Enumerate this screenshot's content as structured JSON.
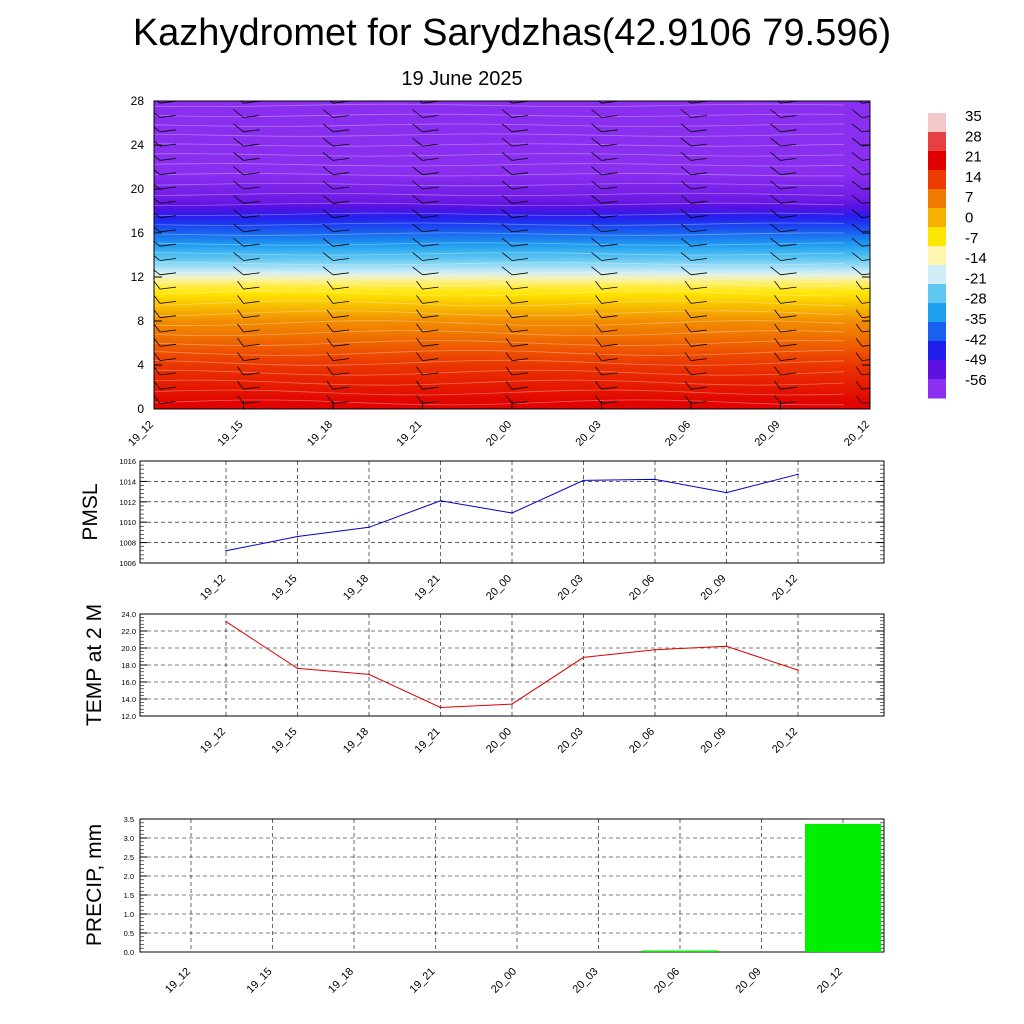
{
  "page": {
    "title": "Kazhydromet for Sarydzhas(42.9106 79.596)",
    "subtitle": "19 June 2025"
  },
  "colors": {
    "pmsl_line": "#0000cc",
    "temp_line": "#dd0000",
    "precip_bar": "#00ee00",
    "grid": "#000000"
  },
  "chart_data": [
    {
      "type": "heatmap",
      "title": "",
      "x": [
        "19_12",
        "19_15",
        "19_18",
        "19_21",
        "20_00",
        "20_03",
        "20_06",
        "20_09",
        "20_12"
      ],
      "ylim": [
        0,
        28
      ],
      "yticks": [
        0,
        4,
        8,
        12,
        16,
        20,
        24,
        28
      ],
      "colorbar_labels": [
        "35",
        "28",
        "21",
        "14",
        "7",
        "0",
        "-7",
        "-14",
        "-21",
        "-28",
        "-35",
        "-42",
        "-49",
        "-56"
      ],
      "colorbar_colors": [
        "#f4c8c8",
        "#e64040",
        "#e00000",
        "#ec3a00",
        "#f07a00",
        "#f6b000",
        "#ffe600",
        "#fff6b0",
        "#d0eefa",
        "#60c8f0",
        "#1ea0f0",
        "#1a60f0",
        "#2020ee",
        "#6010e0",
        "#8a2ef0"
      ],
      "temperature_profile": [
        {
          "height": 0,
          "value": 25
        },
        {
          "height": 4,
          "value": 18
        },
        {
          "height": 8,
          "value": 8
        },
        {
          "height": 11.5,
          "value": -8
        },
        {
          "height": 12.5,
          "value": -18
        },
        {
          "height": 16,
          "value": -38
        },
        {
          "height": 19,
          "value": -55
        },
        {
          "height": 20.5,
          "value": -58
        },
        {
          "height": 22,
          "value": -62
        },
        {
          "height": 28,
          "value": -62
        }
      ],
      "wind_barbs": true
    },
    {
      "type": "line",
      "ylabel": "PMSL",
      "categories": [
        "19_12",
        "19_15",
        "19_18",
        "19_21",
        "20_00",
        "20_03",
        "20_06",
        "20_09",
        "20_12"
      ],
      "ylim": [
        1006,
        1016
      ],
      "yticks": [
        "1006",
        "1008",
        "1010",
        "1012",
        "1014",
        "1016"
      ],
      "series": [
        {
          "values": [
            1007.2,
            1008.6,
            1009.5,
            1012.1,
            1010.9,
            1014.1,
            1014.2,
            1012.9,
            1014.7
          ]
        }
      ]
    },
    {
      "type": "line",
      "ylabel": "TEMP at 2 M",
      "categories": [
        "19_12",
        "19_15",
        "19_18",
        "19_21",
        "20_00",
        "20_03",
        "20_06",
        "20_09",
        "20_12"
      ],
      "ylim": [
        12,
        24
      ],
      "yticks": [
        "12.0",
        "14.0",
        "16.0",
        "18.0",
        "20.0",
        "22.0",
        "24.0"
      ],
      "series": [
        {
          "values": [
            23.1,
            17.6,
            16.9,
            13.0,
            13.4,
            18.9,
            19.8,
            20.2,
            17.4
          ]
        }
      ]
    },
    {
      "type": "bar",
      "ylabel": "PRECIP, mm",
      "categories": [
        "19_12",
        "19_15",
        "19_18",
        "19_21",
        "20_00",
        "20_03",
        "20_06",
        "20_09",
        "20_12"
      ],
      "ylim": [
        0,
        3.5
      ],
      "yticks": [
        "0.0",
        "0.5",
        "1.0",
        "1.5",
        "2.0",
        "2.5",
        "3.0",
        "3.5"
      ],
      "values": [
        0,
        0,
        0,
        0,
        0,
        0,
        0.04,
        0,
        3.37
      ]
    }
  ]
}
